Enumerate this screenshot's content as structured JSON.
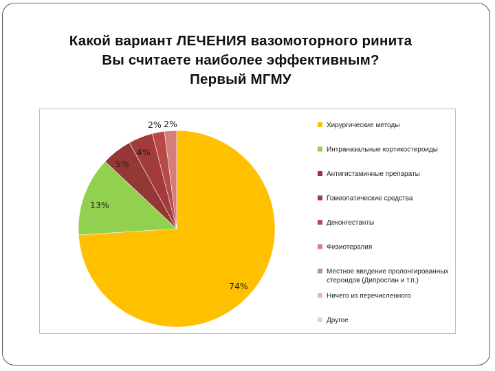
{
  "title": {
    "line1": "Какой вариант ЛЕЧЕНИЯ вазомоторного ринита",
    "line2": "Вы считаете наиболее эффективным?",
    "line3": "Первый МГМУ"
  },
  "chart_data": {
    "type": "pie",
    "title": "",
    "legend_position": "right",
    "slices": [
      {
        "name": "Хирургические методы",
        "value": 74,
        "label": "74%",
        "color": "#FFC000"
      },
      {
        "name": "Интраназальные кортикостероиды",
        "value": 13,
        "label": "13%",
        "color": "#92D050"
      },
      {
        "name": "Антигистаминные препараты",
        "value": 5,
        "label": "5%",
        "color": "#953735"
      },
      {
        "name": "Гомеопатические средства",
        "value": 4,
        "label": "4%",
        "color": "#A33B3B"
      },
      {
        "name": "Деконгестанты",
        "value": 2,
        "label": "2%",
        "color": "#B94848"
      },
      {
        "name": "Физиотерапия",
        "value": 2,
        "label": "2%",
        "color": "#D77C7C"
      },
      {
        "name": "Местное введение пролонгированных стероидов (Дипроспан и т.п.)",
        "value": 0,
        "label": "",
        "color": "#C98A8A"
      },
      {
        "name": "Ничего из перечисленного",
        "value": 0,
        "label": "",
        "color": "#E8B4B4"
      },
      {
        "name": "Другое",
        "value": 0,
        "label": "",
        "color": "#F2CCCC"
      }
    ]
  }
}
